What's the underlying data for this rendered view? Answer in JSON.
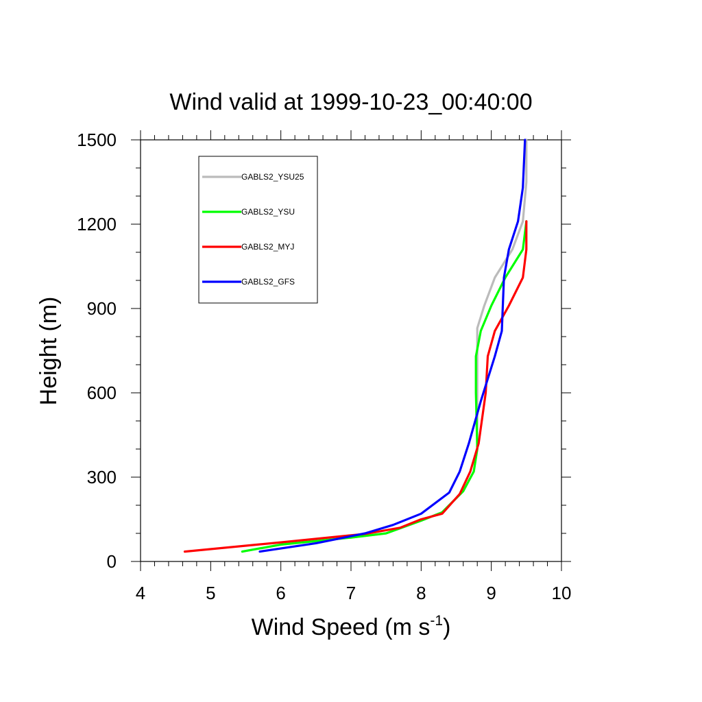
{
  "chart_data": {
    "type": "line",
    "title": "Wind valid at 1999-10-23_00:40:00",
    "xlabel": "Wind Speed (m s",
    "xlabel_sup": "-1",
    "xlabel_close": ")",
    "ylabel": "Height (m)",
    "xlim": [
      4,
      10
    ],
    "ylim": [
      0,
      1500
    ],
    "xticks": [
      "4",
      "5",
      "6",
      "7",
      "8",
      "9",
      "10"
    ],
    "yticks": [
      "0",
      "300",
      "600",
      "900",
      "1200",
      "1500"
    ],
    "grid": false,
    "legend_position": "top-left",
    "series": [
      {
        "name": "GABLS2_YSU25",
        "color": "#bbbbbb",
        "points": [
          [
            5.45,
            35
          ],
          [
            6.0,
            60
          ],
          [
            7.0,
            85
          ],
          [
            7.5,
            100
          ],
          [
            8.0,
            145
          ],
          [
            8.3,
            175
          ],
          [
            8.6,
            250
          ],
          [
            8.75,
            320
          ],
          [
            8.8,
            400
          ],
          [
            8.8,
            600
          ],
          [
            8.8,
            830
          ],
          [
            8.9,
            910
          ],
          [
            9.05,
            1010
          ],
          [
            9.3,
            1110
          ],
          [
            9.45,
            1210
          ],
          [
            9.5,
            1350
          ],
          [
            9.5,
            1500
          ]
        ]
      },
      {
        "name": "GABLS2_YSU",
        "color": "#00ff00",
        "points": [
          [
            5.45,
            35
          ],
          [
            6.0,
            60
          ],
          [
            7.0,
            85
          ],
          [
            7.5,
            100
          ],
          [
            8.0,
            145
          ],
          [
            8.3,
            175
          ],
          [
            8.6,
            250
          ],
          [
            8.75,
            320
          ],
          [
            8.8,
            400
          ],
          [
            8.78,
            600
          ],
          [
            8.78,
            730
          ],
          [
            8.85,
            820
          ],
          [
            9.0,
            910
          ],
          [
            9.2,
            1010
          ],
          [
            9.45,
            1110
          ],
          [
            9.5,
            1210
          ]
        ]
      },
      {
        "name": "GABLS2_MYJ",
        "color": "#ff0000",
        "points": [
          [
            4.63,
            35
          ],
          [
            6.0,
            68
          ],
          [
            7.2,
            98
          ],
          [
            7.7,
            120
          ],
          [
            8.0,
            150
          ],
          [
            8.3,
            170
          ],
          [
            8.55,
            240
          ],
          [
            8.7,
            320
          ],
          [
            8.82,
            420
          ],
          [
            8.92,
            600
          ],
          [
            8.95,
            730
          ],
          [
            9.05,
            820
          ],
          [
            9.25,
            910
          ],
          [
            9.45,
            1010
          ],
          [
            9.5,
            1110
          ],
          [
            9.5,
            1210
          ]
        ]
      },
      {
        "name": "GABLS2_GFS",
        "color": "#0000ff",
        "points": [
          [
            5.7,
            35
          ],
          [
            6.5,
            65
          ],
          [
            7.2,
            100
          ],
          [
            7.6,
            130
          ],
          [
            8.0,
            170
          ],
          [
            8.4,
            245
          ],
          [
            8.55,
            320
          ],
          [
            8.68,
            420
          ],
          [
            8.85,
            570
          ],
          [
            9.05,
            730
          ],
          [
            9.15,
            820
          ],
          [
            9.18,
            1010
          ],
          [
            9.25,
            1110
          ],
          [
            9.38,
            1210
          ],
          [
            9.45,
            1330
          ],
          [
            9.48,
            1500
          ]
        ]
      }
    ]
  }
}
